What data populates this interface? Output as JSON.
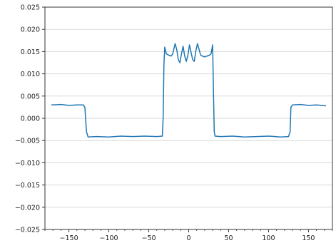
{
  "chart_data": {
    "type": "line",
    "title": "",
    "xlabel": "",
    "ylabel": "",
    "xlim": [
      -180,
      180
    ],
    "ylim": [
      -0.025,
      0.025
    ],
    "grid": "horizontal",
    "legend": "none",
    "color": "#1f77b4",
    "x_ticks": [
      -150,
      -100,
      -50,
      0,
      50,
      100,
      150
    ],
    "x_tick_labels": [
      "−150",
      "−100",
      "−50",
      "0",
      "50",
      "100",
      "150"
    ],
    "y_ticks": [
      -0.025,
      -0.02,
      -0.015,
      -0.01,
      -0.005,
      0,
      0.005,
      0.01,
      0.015,
      0.02,
      0.025
    ],
    "y_tick_labels": [
      "−0.025",
      "−0.020",
      "−0.015",
      "−0.010",
      "−0.005",
      "0.000",
      "0.005",
      "0.010",
      "0.015",
      "0.020",
      "0.025"
    ],
    "series": [
      {
        "x": [
          -172,
          -160,
          -150,
          -140,
          -132,
          -130,
          -128,
          -126,
          -115,
          -100,
          -85,
          -70,
          -55,
          -40,
          -33,
          -32,
          -31,
          -30,
          -28,
          -25,
          -22,
          -20,
          -17,
          -15,
          -13,
          -11,
          -9,
          -7,
          -5,
          -3,
          -1,
          1,
          3,
          5,
          7,
          9,
          11,
          13,
          15,
          17,
          20,
          23,
          26,
          28,
          30,
          31,
          32,
          33,
          40,
          55,
          70,
          85,
          100,
          115,
          125,
          127,
          128,
          130,
          140,
          150,
          160,
          172
        ],
        "y": [
          0.003,
          0.0031,
          0.0029,
          0.003,
          0.003,
          0.0025,
          -0.003,
          -0.0042,
          -0.0041,
          -0.0042,
          -0.004,
          -0.0041,
          -0.004,
          -0.0041,
          -0.004,
          0.0,
          0.012,
          0.016,
          0.0145,
          0.0142,
          0.014,
          0.0145,
          0.0168,
          0.0155,
          0.0132,
          0.0125,
          0.0145,
          0.0162,
          0.014,
          0.0128,
          0.0142,
          0.0165,
          0.0148,
          0.0132,
          0.0128,
          0.0152,
          0.0168,
          0.0155,
          0.0142,
          0.014,
          0.0138,
          0.014,
          0.0142,
          0.0145,
          0.0165,
          0.006,
          -0.003,
          -0.004,
          -0.0041,
          -0.004,
          -0.0042,
          -0.0041,
          -0.004,
          -0.0042,
          -0.0041,
          -0.003,
          0.0025,
          0.003,
          0.0031,
          0.0029,
          0.003,
          0.0028
        ]
      }
    ]
  }
}
